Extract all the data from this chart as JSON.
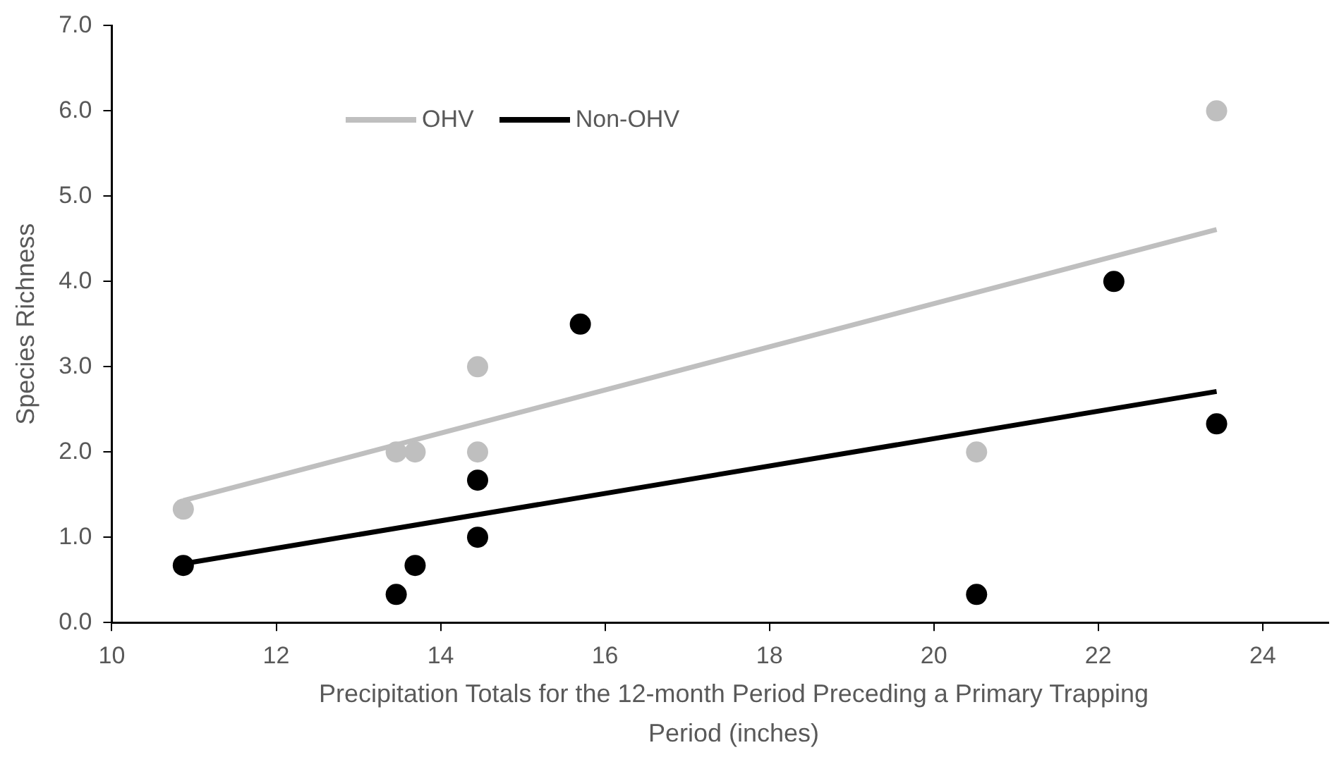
{
  "chart_data": {
    "type": "scatter",
    "xlabel": "Precipitation Totals for the 12-month Period Preceding a Primary Trapping Period (inches)",
    "ylabel": "Species Richness",
    "xlim": [
      10,
      24.8
    ],
    "xticks": [
      10,
      12,
      14,
      16,
      18,
      20,
      22,
      24
    ],
    "ylim": [
      0,
      7
    ],
    "yticks": [
      {
        "value": 0,
        "label": "0.0"
      },
      {
        "value": 1,
        "label": "1.0"
      },
      {
        "value": 2,
        "label": "2.0"
      },
      {
        "value": 3,
        "label": "3.0"
      },
      {
        "value": 4,
        "label": "4.0"
      },
      {
        "value": 5,
        "label": "5.0"
      },
      {
        "value": 6,
        "label": "6.0"
      },
      {
        "value": 7,
        "label": "7.0"
      }
    ],
    "grid": false,
    "legend": "top left",
    "marker": "circle",
    "series": [
      {
        "type": "scatter",
        "color": "#bfbfbf",
        "x": [
          10.87,
          13.46,
          13.69,
          14.45,
          14.45,
          20.52,
          23.44
        ],
        "values": [
          1.33,
          2,
          2,
          2,
          3,
          2,
          6
        ]
      },
      {
        "type": "scatter",
        "color": "#000000",
        "x": [
          10.87,
          13.46,
          13.69,
          14.45,
          14.45,
          15.7,
          20.52,
          22.19,
          23.44
        ],
        "values": [
          0.67,
          0.33,
          0.67,
          1,
          1.67,
          3.5,
          0.33,
          4,
          2.33
        ]
      },
      {
        "type": "line",
        "name": "OHV",
        "color": "#bfbfbf",
        "marker": "none",
        "x": [
          10.87,
          23.44
        ],
        "values": [
          1.43,
          4.61
        ]
      },
      {
        "type": "line",
        "name": "Non-OHV",
        "color": "#000000",
        "marker": "none",
        "x": [
          10.87,
          23.44
        ],
        "values": [
          0.69,
          2.71
        ]
      }
    ]
  }
}
